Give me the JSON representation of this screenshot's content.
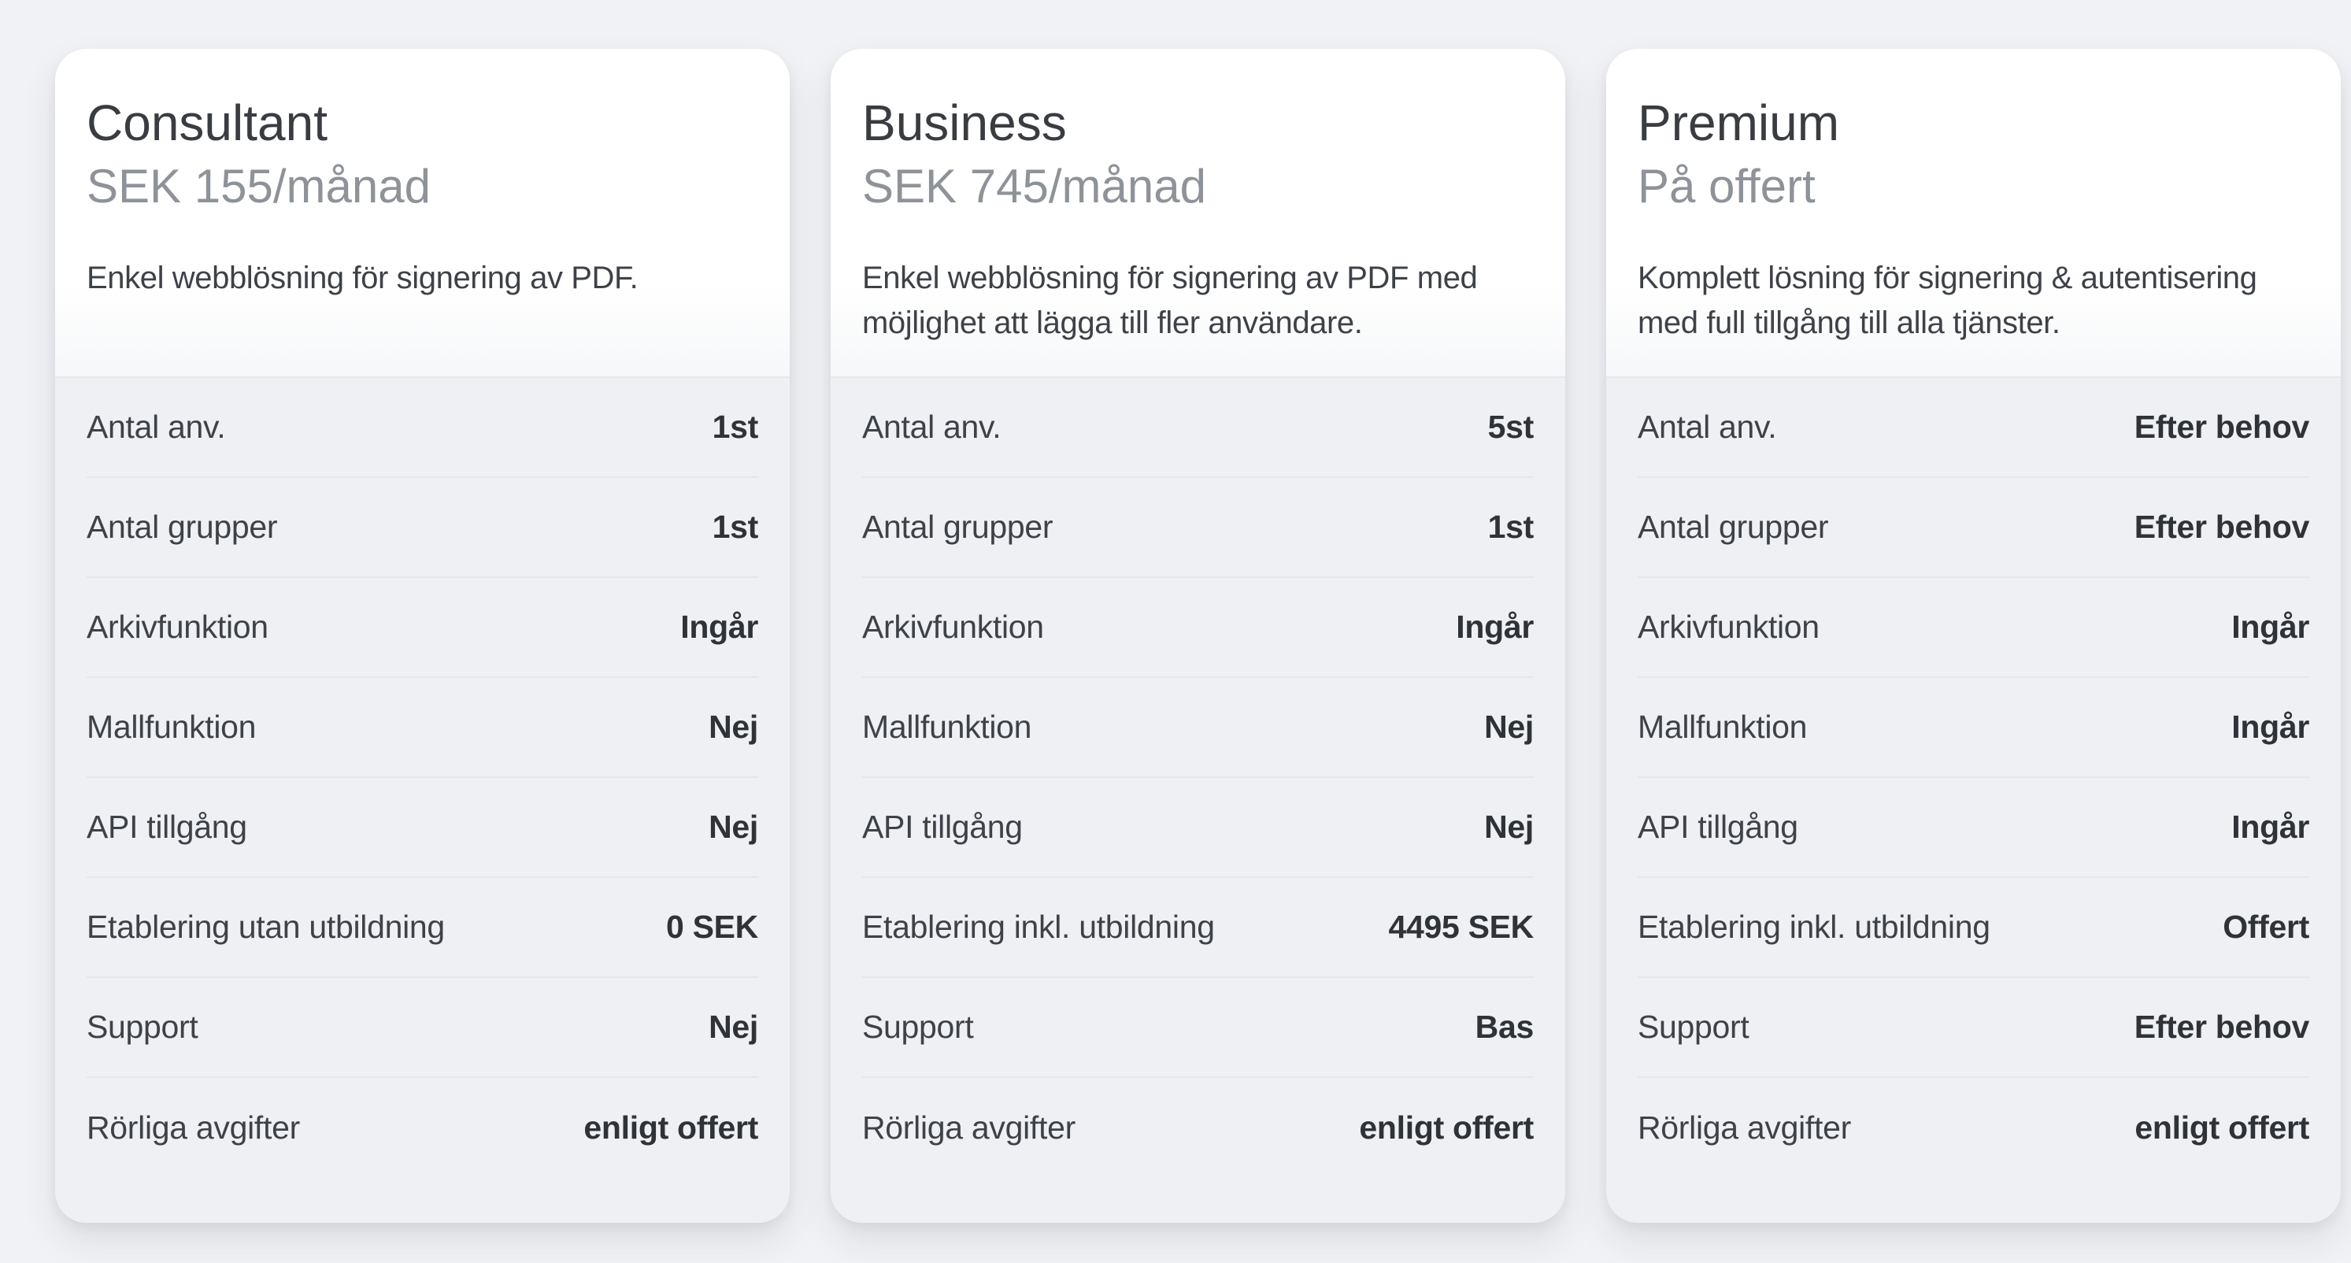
{
  "colors": {
    "page_background": "#f1f2f5",
    "card_header_background": "#ffffff",
    "card_body_background": "#eef0f3",
    "value_text": "#2f3338",
    "price_text": "#8e9299"
  },
  "cards": [
    {
      "name": "Consultant",
      "price": "SEK 155/månad",
      "description": "Enkel webblösning för signering av PDF.",
      "features": [
        {
          "label": "Antal anv.",
          "value": "1st"
        },
        {
          "label": "Antal grupper",
          "value": "1st"
        },
        {
          "label": "Arkivfunktion",
          "value": "Ingår"
        },
        {
          "label": "Mallfunktion",
          "value": "Nej"
        },
        {
          "label": "API tillgång",
          "value": "Nej"
        },
        {
          "label": "Etablering utan utbildning",
          "value": "0 SEK"
        },
        {
          "label": "Support",
          "value": "Nej"
        },
        {
          "label": "Rörliga avgifter",
          "value": "enligt offert"
        }
      ]
    },
    {
      "name": "Business",
      "price": "SEK 745/månad",
      "description": "Enkel webblösning för signering av PDF med möjlighet att lägga till fler användare.",
      "features": [
        {
          "label": "Antal anv.",
          "value": "5st"
        },
        {
          "label": "Antal grupper",
          "value": "1st"
        },
        {
          "label": "Arkivfunktion",
          "value": "Ingår"
        },
        {
          "label": "Mallfunktion",
          "value": "Nej"
        },
        {
          "label": "API tillgång",
          "value": "Nej"
        },
        {
          "label": "Etablering inkl. utbildning",
          "value": "4495 SEK"
        },
        {
          "label": "Support",
          "value": "Bas"
        },
        {
          "label": "Rörliga avgifter",
          "value": "enligt offert"
        }
      ]
    },
    {
      "name": "Premium",
      "price": "På offert",
      "description": "Komplett lösning för signering & autentisering med full tillgång till alla tjänster.",
      "features": [
        {
          "label": "Antal anv.",
          "value": "Efter behov"
        },
        {
          "label": "Antal grupper",
          "value": "Efter behov"
        },
        {
          "label": "Arkivfunktion",
          "value": "Ingår"
        },
        {
          "label": "Mallfunktion",
          "value": "Ingår"
        },
        {
          "label": "API tillgång",
          "value": "Ingår"
        },
        {
          "label": "Etablering inkl. utbildning",
          "value": "Offert"
        },
        {
          "label": "Support",
          "value": "Efter behov"
        },
        {
          "label": "Rörliga avgifter",
          "value": "enligt offert"
        }
      ]
    }
  ]
}
